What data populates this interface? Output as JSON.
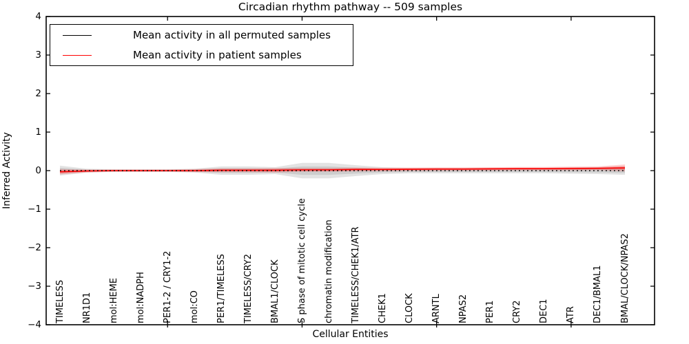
{
  "chart_data": {
    "type": "line",
    "title": "Circadian rhythm pathway -- 509 samples",
    "xlabel": "Cellular Entities",
    "ylabel": "Inferred Activity",
    "ylim": [
      -4,
      4
    ],
    "yticks": [
      -4,
      -3,
      -2,
      -1,
      0,
      1,
      2,
      3,
      4
    ],
    "x_major_tick_indices": [
      4,
      9,
      14,
      19
    ],
    "grid": false,
    "legend_position": "upper left",
    "categories": [
      "TIMELESS",
      "NR1D1",
      "mol:HEME",
      "mol:NADPH",
      "PER1-2 / CRY1-2",
      "mol:CO",
      "PER1/TIMELESS",
      "TIMELESS/CRY2",
      "BMAL1/CLOCK",
      "S phase of mitotic cell cycle",
      "chromatin modification",
      "TIMELESS/CHEK1/ATR",
      "CHEK1",
      "CLOCK",
      "ARNTL",
      "NPAS2",
      "PER1",
      "CRY2",
      "DEC1",
      "ATR",
      "DEC1/BMAL1",
      "BMAL/CLOCK/NPAS2"
    ],
    "series": [
      {
        "name": "Mean activity in all permuted samples",
        "color": "#000000",
        "line_style": "dotted",
        "values": [
          0,
          0,
          0,
          0,
          0,
          0,
          0,
          0,
          0,
          0,
          0,
          0,
          0,
          0,
          0,
          0,
          0,
          0,
          0,
          0,
          0,
          0
        ],
        "band_halfwidth": [
          0.13,
          0.05,
          0.035,
          0.035,
          0.035,
          0.05,
          0.11,
          0.11,
          0.09,
          0.2,
          0.2,
          0.14,
          0.09,
          0.07,
          0.07,
          0.07,
          0.07,
          0.07,
          0.07,
          0.08,
          0.09,
          0.11
        ],
        "band_color": "rgba(128,128,128,0.22)"
      },
      {
        "name": "Mean activity in patient samples",
        "color": "#ff0000",
        "line_style": "solid",
        "values": [
          -0.03,
          -0.01,
          0.0,
          0.0,
          0.0,
          0.0,
          0.01,
          0.01,
          0.01,
          0.02,
          0.02,
          0.03,
          0.03,
          0.035,
          0.04,
          0.04,
          0.045,
          0.05,
          0.05,
          0.055,
          0.06,
          0.07
        ],
        "band_halfwidth": [
          0.07,
          0.04,
          0.03,
          0.03,
          0.03,
          0.04,
          0.05,
          0.05,
          0.06,
          0.05,
          0.05,
          0.05,
          0.045,
          0.045,
          0.045,
          0.045,
          0.045,
          0.045,
          0.045,
          0.05,
          0.05,
          0.09
        ],
        "band_color": "rgba(255,0,0,0.18)"
      }
    ],
    "legend": {
      "items": [
        {
          "label": "Mean activity in all permuted samples",
          "color": "#000000"
        },
        {
          "label": "Mean activity in patient samples",
          "color": "#ff0000"
        }
      ]
    }
  }
}
